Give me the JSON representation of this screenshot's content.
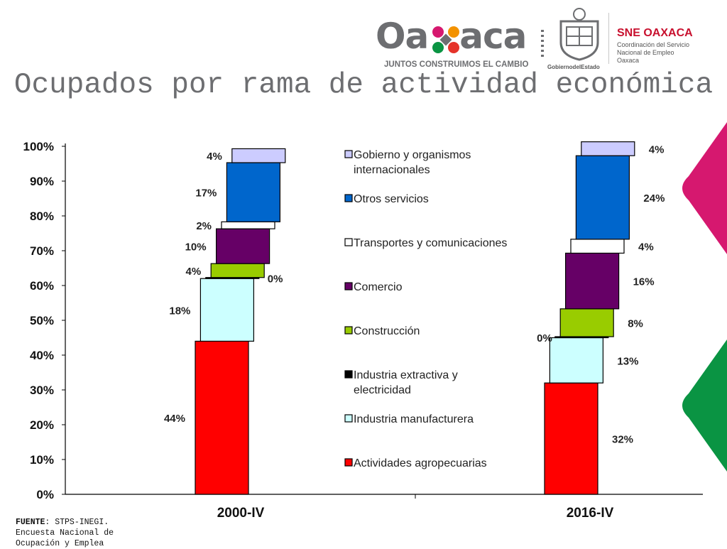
{
  "header": {
    "brand_name": "Oaxaca",
    "brand_tagline": "JUNTOS CONSTRUIMOS EL CAMBIO",
    "seal_caption": "GobiernodelEstado",
    "sne_title": "SNE OAXACA",
    "sne_subtitle": "Coordinación del Servicio Nacional de Empleo Oaxaca"
  },
  "title": "Ocupados por rama de actividad económica",
  "source": {
    "label": "FUENTE",
    "text": ": STPS-INEGI. Encuesta Nacional de Ocupación y Emplea"
  },
  "colors": {
    "title": "#6d6e71",
    "brand_red": "#c8102e",
    "deco_pink": "#d6186f",
    "deco_green": "#0a9443"
  },
  "chart_data": {
    "type": "bar",
    "subtype": "stacked-waterfall-100%",
    "categories": [
      "2000-IV",
      "2016-IV"
    ],
    "ylim": [
      0,
      100
    ],
    "yticks": [
      "0%",
      "10%",
      "20%",
      "30%",
      "40%",
      "50%",
      "60%",
      "70%",
      "80%",
      "90%",
      "100%"
    ],
    "legend_position": "center",
    "grid": false,
    "series": [
      {
        "name": "Actividades agropecuarias",
        "color": "#ff0000",
        "values": [
          44,
          32
        ],
        "labels": [
          "44%",
          "32%"
        ]
      },
      {
        "name": "Industria manufacturera",
        "color": "#ccffff",
        "values": [
          18,
          13
        ],
        "labels": [
          "18%",
          "13%"
        ]
      },
      {
        "name": "Industria extractiva y electricidad",
        "color": "#000000",
        "values": [
          0.3,
          0.3
        ],
        "labels": [
          "0%",
          "0%"
        ]
      },
      {
        "name": "Construcción",
        "color": "#99cc00",
        "values": [
          4,
          8
        ],
        "labels": [
          "4%",
          "8%"
        ]
      },
      {
        "name": "Comercio",
        "color": "#660066",
        "values": [
          10,
          16
        ],
        "labels": [
          "10%",
          "16%"
        ]
      },
      {
        "name": "Transportes y comunicaciones",
        "color": "#ffffff",
        "values": [
          2,
          4
        ],
        "labels": [
          "2%",
          "4%"
        ]
      },
      {
        "name": "Otros servicios",
        "color": "#0066cc",
        "values": [
          17,
          24
        ],
        "labels": [
          "17%",
          "24%"
        ]
      },
      {
        "name": "Gobierno y organismos internacionales",
        "color": "#ccccff",
        "values": [
          4,
          4
        ],
        "labels": [
          "4%",
          "4%"
        ]
      }
    ]
  }
}
